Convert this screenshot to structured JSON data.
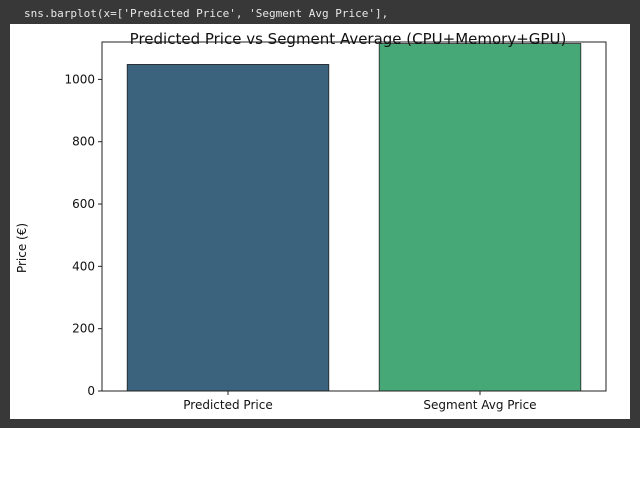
{
  "code": {
    "line": "sns.barplot(x=['Predicted Price', 'Segment Avg Price'],"
  },
  "chart_data": {
    "type": "bar",
    "title": "Predicted Price vs Segment Average (CPU+Memory+GPU)",
    "xlabel": "",
    "ylabel": "Price (€)",
    "categories": [
      "Predicted Price",
      "Segment Avg Price"
    ],
    "values": [
      1048,
      1115
    ],
    "colors": [
      "#3b637e",
      "#46a877"
    ],
    "ylim": [
      0,
      1120
    ],
    "yticks": [
      0,
      200,
      400,
      600,
      800,
      1000
    ],
    "grid": false
  },
  "colors": {
    "notebook_background": "#383838",
    "code_text": "#e8e8e8"
  }
}
